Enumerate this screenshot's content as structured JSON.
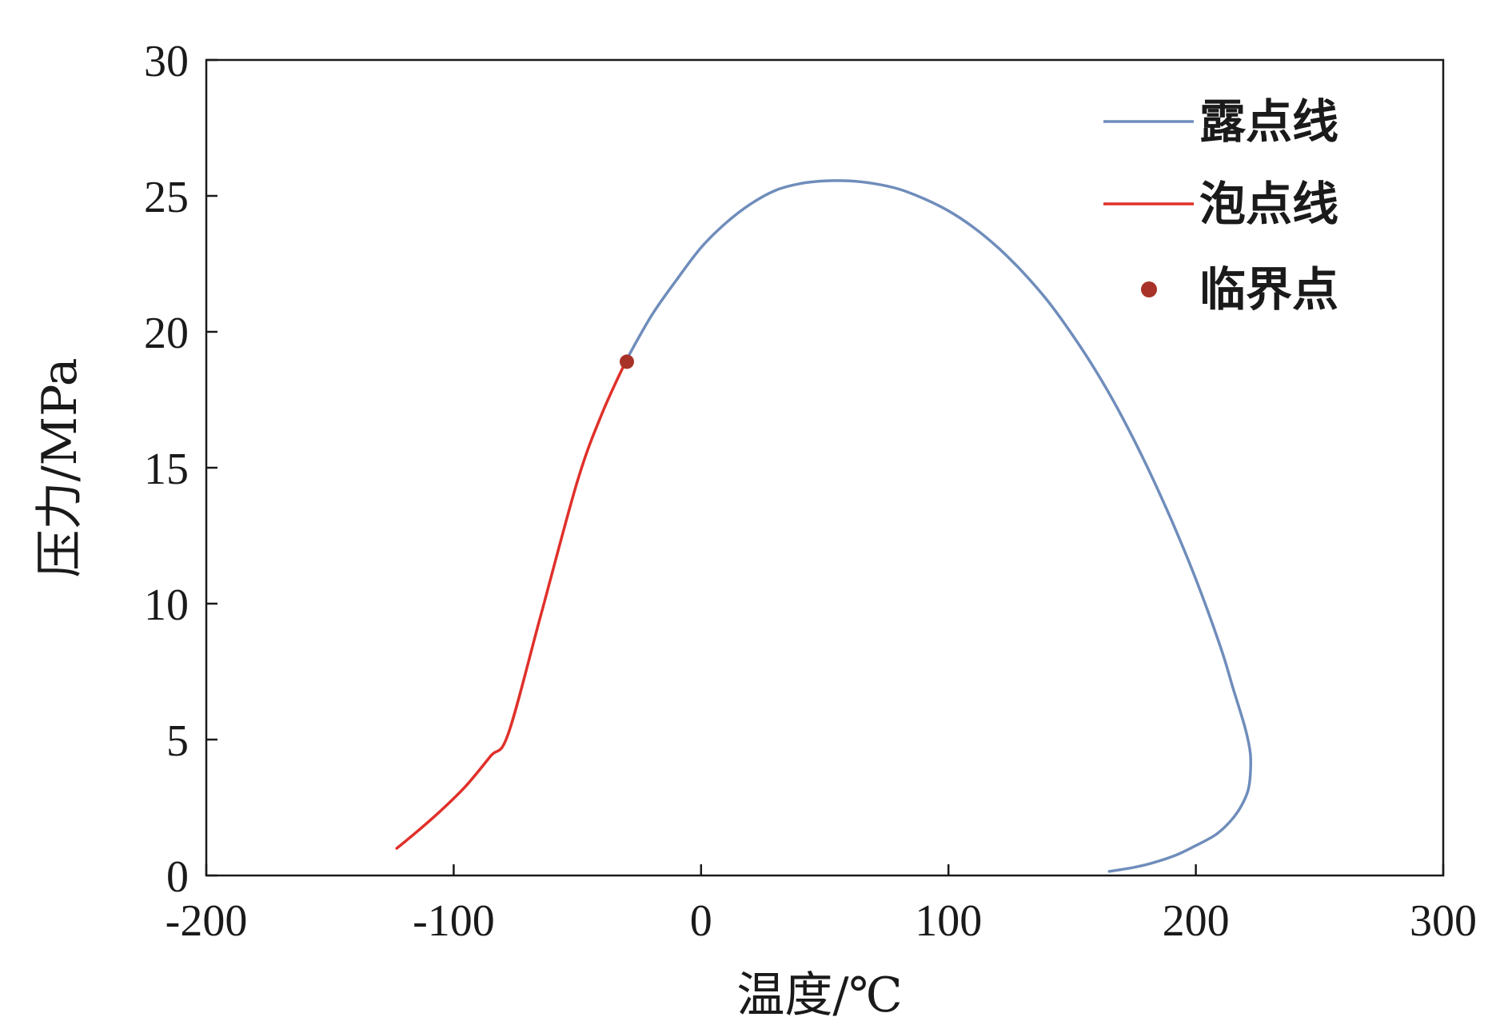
{
  "chart_data": {
    "type": "line",
    "xlabel": "温度/℃",
    "ylabel": "压力/MPa",
    "xlim": [
      -200,
      300
    ],
    "ylim": [
      0,
      30
    ],
    "xticks": [
      "-200",
      "-100",
      "0",
      "100",
      "200",
      "300"
    ],
    "yticks": [
      "0",
      "5",
      "10",
      "15",
      "20",
      "25",
      "30"
    ],
    "grid": false,
    "legend_position": "top-right",
    "series": [
      {
        "name": "露点线",
        "color": "#6f8dbb",
        "x": [
          -30,
          -20,
          -10,
          0,
          10,
          20,
          30,
          40,
          50,
          60,
          70,
          80,
          90,
          100,
          110,
          120,
          130,
          140,
          150,
          160,
          170,
          180,
          190,
          200,
          210,
          215,
          220,
          222,
          222,
          221,
          218,
          214,
          208,
          200,
          192,
          182,
          175,
          165
        ],
        "y": [
          19.0,
          20.6,
          21.9,
          23.1,
          24.0,
          24.7,
          25.2,
          25.45,
          25.55,
          25.55,
          25.45,
          25.25,
          24.9,
          24.45,
          23.85,
          23.1,
          22.2,
          21.15,
          19.9,
          18.5,
          16.9,
          15.1,
          13.1,
          10.9,
          8.4,
          6.9,
          5.4,
          4.5,
          3.7,
          3.1,
          2.5,
          2.0,
          1.5,
          1.1,
          0.75,
          0.45,
          0.3,
          0.15
        ]
      },
      {
        "name": "泡点线",
        "color": "#e0302a",
        "x": [
          -123,
          -115,
          -105,
          -95,
          -85,
          -78,
          -65,
          -50,
          -40,
          -30
        ],
        "y": [
          1.0,
          1.6,
          2.4,
          3.3,
          4.4,
          5.2,
          9.5,
          14.5,
          17.0,
          19.0
        ]
      }
    ],
    "points": [
      {
        "name": "临界点",
        "color": "#a83228",
        "x": -30,
        "y": 18.9
      }
    ]
  }
}
